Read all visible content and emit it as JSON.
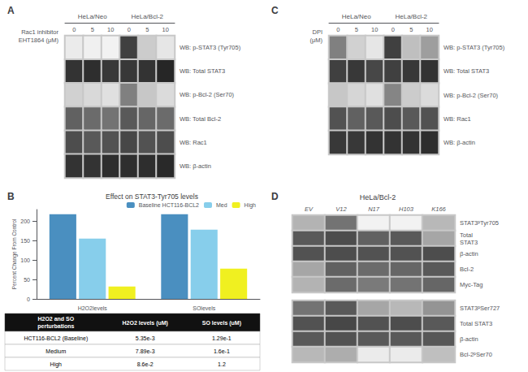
{
  "chart_data": [
    {
      "type": "heatmap",
      "panel_label": "A",
      "xlabel": "Rac1 inhibitor\nEHT1864 (μM)",
      "groups": [
        "HeLa/Neo",
        "HeLa/Bcl-2"
      ],
      "categories": [
        "0",
        "5",
        "10",
        "0",
        "5",
        "10"
      ],
      "y_categories": [
        "WB: p-STAT3 (Tyr705)",
        "WB: Total STAT3",
        "WB: p-Bcl-2 (Ser70)",
        "WB: Total Bcl-2",
        "WB: Rac1",
        "WB: β-actin"
      ],
      "values": [
        [
          0.08,
          0.06,
          0.05,
          0.75,
          0.2,
          0.1
        ],
        [
          0.8,
          0.82,
          0.78,
          0.78,
          0.8,
          0.85
        ],
        [
          0.18,
          0.15,
          0.12,
          0.5,
          0.22,
          0.14
        ],
        [
          0.62,
          0.58,
          0.55,
          0.65,
          0.6,
          0.58
        ],
        [
          0.7,
          0.65,
          0.68,
          0.72,
          0.68,
          0.7
        ],
        [
          0.8,
          0.8,
          0.82,
          0.82,
          0.82,
          0.84
        ]
      ],
      "zlim": [
        0,
        1
      ]
    },
    {
      "type": "bar",
      "panel_label": "B",
      "title": "Effect on STAT3-Tyr705 levels",
      "ylabel": "Percent Change From Control",
      "categories": [
        "H2O2levels",
        "SOlevels"
      ],
      "series": [
        {
          "name": "Baseline HCT116-BCL2",
          "color": "#4a8fc0",
          "values": [
            218,
            218
          ]
        },
        {
          "name": "Med",
          "color": "#87ceeb",
          "values": [
            155,
            178
          ]
        },
        {
          "name": "High",
          "color": "#f0f020",
          "values": [
            32,
            78
          ]
        }
      ],
      "ylim": [
        0,
        230
      ],
      "yticks": [
        0,
        50,
        100,
        150,
        200
      ],
      "grid": false,
      "legend": "upper right"
    },
    {
      "type": "table",
      "header": [
        "H2O2 and SO\nperturbations",
        "H2O2 levels (uM)",
        "SO levels (uM)"
      ],
      "rows": [
        [
          "HCT116-BCL2 (Baseline)",
          "5.35e-3",
          "1.29e-1"
        ],
        [
          "Medium",
          "7.89e-3",
          "1.6e-1"
        ],
        [
          "High",
          "8.6e-2",
          "1.2"
        ]
      ]
    },
    {
      "type": "heatmap",
      "panel_label": "C",
      "xlabel": "DPI\n(μM)",
      "groups": [
        "HeLa/Neo",
        "HeLa/Bcl-2"
      ],
      "categories": [
        "0",
        "5",
        "10",
        "0",
        "5",
        "10"
      ],
      "y_categories": [
        "WB: p-STAT3 (Tyr705)",
        "WB: Total STAT3",
        "WB: p-Bcl-2 (Ser70)",
        "WB: Rac1",
        "WB: β-actin"
      ],
      "values": [
        [
          0.5,
          0.18,
          0.1,
          0.75,
          0.25,
          0.38
        ],
        [
          0.75,
          0.78,
          0.72,
          0.75,
          0.78,
          0.8
        ],
        [
          0.22,
          0.16,
          0.12,
          0.48,
          0.2,
          0.14
        ],
        [
          0.68,
          0.62,
          0.65,
          0.7,
          0.65,
          0.68
        ],
        [
          0.78,
          0.78,
          0.8,
          0.8,
          0.8,
          0.82
        ]
      ],
      "zlim": [
        0,
        1
      ]
    },
    {
      "type": "heatmap",
      "panel_label": "D",
      "title": "HeLa/Bcl-2",
      "categories": [
        "EV",
        "V12",
        "N17",
        "H103",
        "K166"
      ],
      "y_categories": [
        "STAT3ᵖTyr705",
        "Total\nSTAT3",
        "β-actin",
        "Bcl-2",
        "Myc-Tag"
      ],
      "values": [
        [
          0.3,
          0.55,
          0.05,
          0.05,
          0.28
        ],
        [
          0.65,
          0.7,
          0.62,
          0.65,
          0.35
        ],
        [
          0.68,
          0.7,
          0.68,
          0.68,
          0.7
        ],
        [
          0.35,
          0.62,
          0.58,
          0.6,
          0.65
        ],
        [
          0.3,
          0.58,
          0.52,
          0.55,
          0.6
        ]
      ],
      "zlim": [
        0,
        1
      ]
    },
    {
      "type": "heatmap",
      "categories": [
        "EV",
        "V12",
        "N17",
        "H103",
        "K166"
      ],
      "y_categories": [
        "STAT3ᵖSer727",
        "Total STAT3",
        "β-actin",
        "Bcl-2ᵖSer70"
      ],
      "values": [
        [
          0.55,
          0.65,
          0.35,
          0.28,
          0.42
        ],
        [
          0.68,
          0.72,
          0.68,
          0.7,
          0.65
        ],
        [
          0.65,
          0.68,
          0.65,
          0.65,
          0.66
        ],
        [
          0.28,
          0.32,
          0.08,
          0.08,
          0.25
        ]
      ],
      "zlim": [
        0,
        1
      ],
      "tick_labels": "y"
    }
  ]
}
